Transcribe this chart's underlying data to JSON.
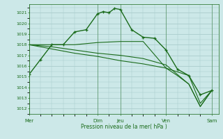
{
  "background_color": "#cce8e8",
  "grid_color": "#aacccc",
  "line_color": "#1a6b1a",
  "xlabel": "Pression niveau de la mer( hPa )",
  "ylim": [
    1011.5,
    1021.8
  ],
  "yticks": [
    1012,
    1013,
    1014,
    1015,
    1016,
    1017,
    1018,
    1019,
    1020,
    1021
  ],
  "day_labels": [
    "Mer",
    "Dim",
    "Jeu",
    "Ven",
    "Sam"
  ],
  "day_positions": [
    0,
    3,
    4,
    6,
    8
  ],
  "xlim": [
    0,
    8.3
  ],
  "line1_x": [
    0,
    0.5,
    1,
    1.5,
    2,
    2.5,
    3,
    3.25,
    3.5,
    3.75,
    4,
    4.5,
    5,
    5.5,
    6,
    6.5,
    7,
    7.5,
    8
  ],
  "line1_y": [
    1015.2,
    1016.6,
    1018.0,
    1018.0,
    1019.2,
    1019.4,
    1020.9,
    1021.1,
    1021.0,
    1021.4,
    1021.3,
    1019.4,
    1018.7,
    1018.6,
    1017.5,
    1015.7,
    1015.1,
    1013.3,
    1013.7
  ],
  "line2_x": [
    0,
    1,
    2,
    3,
    4,
    5,
    6,
    7,
    7.5,
    8
  ],
  "line2_y": [
    1018.0,
    1018.0,
    1018.0,
    1018.2,
    1018.3,
    1018.3,
    1015.8,
    1015.1,
    1012.5,
    1013.7
  ],
  "line3_x": [
    0,
    1,
    2,
    3,
    4,
    5,
    6,
    6.5,
    7,
    7.5,
    8
  ],
  "line3_y": [
    1018.0,
    1017.8,
    1017.5,
    1017.2,
    1017.0,
    1016.7,
    1016.1,
    1015.2,
    1014.3,
    1012.2,
    1013.7
  ],
  "line4_x": [
    0,
    1,
    2,
    3,
    4,
    5,
    6,
    6.5,
    7,
    7.5,
    8
  ],
  "line4_y": [
    1018.0,
    1017.6,
    1017.2,
    1016.9,
    1016.5,
    1016.2,
    1015.8,
    1015.1,
    1014.3,
    1012.2,
    1013.7
  ]
}
